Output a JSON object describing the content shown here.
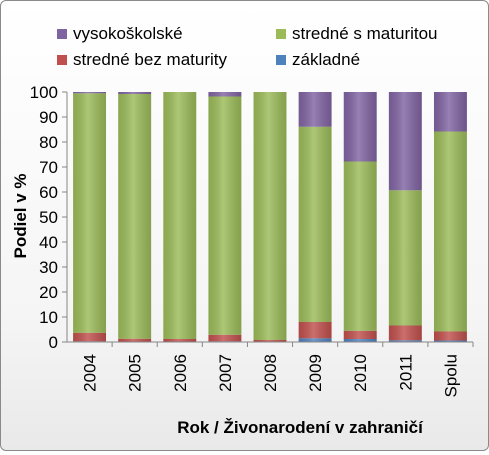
{
  "chart_data": {
    "type": "bar",
    "stacked": true,
    "title": "",
    "xlabel": "Rok / Živonarodení v zahraničí",
    "ylabel": "Podiel v %",
    "ylim": [
      0,
      100
    ],
    "yticks": [
      0,
      10,
      20,
      30,
      40,
      50,
      60,
      70,
      80,
      90,
      100
    ],
    "categories": [
      "2004",
      "2005",
      "2006",
      "2007",
      "2008",
      "2009",
      "2010",
      "2011",
      "Spolu"
    ],
    "series": [
      {
        "name": "základné",
        "color": "#4F81BD",
        "values": [
          0.3,
          0.2,
          0.2,
          0.3,
          0.2,
          1.5,
          1.2,
          0.7,
          0.6
        ]
      },
      {
        "name": "stredné bez maturity",
        "color": "#C0504D",
        "values": [
          3.4,
          1.1,
          1.0,
          2.6,
          0.6,
          6.5,
          3.3,
          5.9,
          3.6
        ]
      },
      {
        "name": "stredné s maturitou",
        "color": "#9BBB59",
        "values": [
          95.8,
          97.9,
          98.8,
          95.3,
          99.2,
          78.1,
          67.7,
          54.1,
          80.0
        ]
      },
      {
        "name": "vysokoškolské",
        "color": "#8064A2",
        "values": [
          0.5,
          0.8,
          0.0,
          1.8,
          0.0,
          13.9,
          27.8,
          39.3,
          15.8
        ]
      }
    ],
    "legend": {
      "position": "top",
      "order": [
        "vysokoškolské",
        "stredné s maturitou",
        "stredné bez maturity",
        "základné"
      ]
    },
    "grid": false
  }
}
